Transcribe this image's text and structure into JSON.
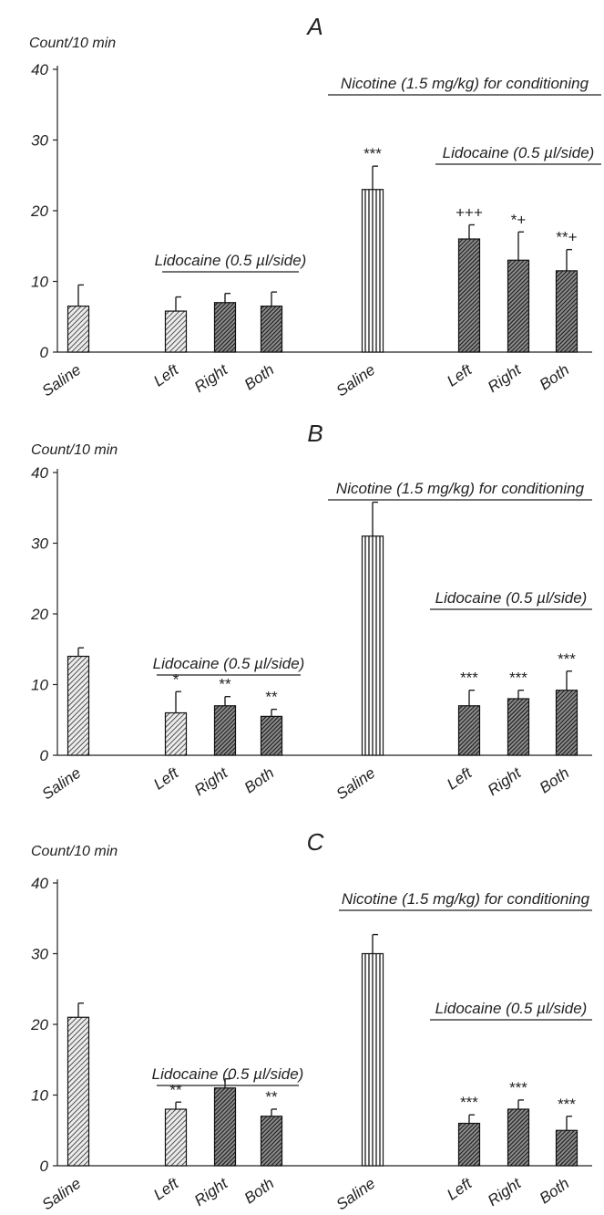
{
  "chart_data": [
    {
      "type": "bar",
      "title": "A",
      "ylabel": "Count/10 min",
      "ylim": [
        0,
        40
      ],
      "yticks": [
        0,
        10,
        20,
        30,
        40
      ],
      "categories": [
        "Saline",
        "Left",
        "Right",
        "Both",
        "Saline",
        "Left",
        "Right",
        "Both"
      ],
      "values": [
        6.5,
        5.8,
        7.0,
        6.5,
        23.0,
        16.0,
        13.0,
        11.5
      ],
      "errors": [
        3.0,
        2.0,
        1.3,
        2.0,
        3.3,
        2.0,
        4.0,
        3.0
      ],
      "significance": [
        "",
        "",
        "",
        "",
        "***",
        "+++",
        "*+",
        "**+"
      ],
      "bar_patterns": [
        "hatch-light",
        "hatch-light",
        "hatch-dark",
        "hatch-dark",
        "vertical",
        "hatch-dark",
        "hatch-dark",
        "hatch-dark"
      ],
      "annotations": [
        {
          "text": "Lidocaine (0.5 µl/side)",
          "span": [
            1,
            3
          ]
        },
        {
          "text": "Nicotine (1.5 mg/kg) for conditioning",
          "span": [
            4,
            7
          ]
        },
        {
          "text": "Lidocaine (0.5 µl/side)",
          "span": [
            5,
            7
          ]
        }
      ]
    },
    {
      "type": "bar",
      "title": "B",
      "ylabel": "Count/10 min",
      "ylim": [
        0,
        40
      ],
      "yticks": [
        0,
        10,
        20,
        30,
        40
      ],
      "categories": [
        "Saline",
        "Left",
        "Right",
        "Both",
        "Saline",
        "Left",
        "Right",
        "Both"
      ],
      "values": [
        14.0,
        6.0,
        7.0,
        5.5,
        31.0,
        7.0,
        8.0,
        9.2
      ],
      "errors": [
        1.2,
        3.0,
        1.3,
        1.0,
        4.8,
        2.2,
        1.2,
        2.7
      ],
      "significance": [
        "",
        "*",
        "**",
        "**",
        "",
        "***",
        "***",
        "***"
      ],
      "bar_patterns": [
        "hatch-light",
        "hatch-light",
        "hatch-dark",
        "hatch-dark",
        "vertical",
        "hatch-dark",
        "hatch-dark",
        "hatch-dark"
      ],
      "annotations": [
        {
          "text": "Lidocaine (0.5 µl/side)",
          "span": [
            1,
            3
          ]
        },
        {
          "text": "Nicotine (1.5 mg/kg) for conditioning",
          "span": [
            4,
            7
          ]
        },
        {
          "text": "Lidocaine (0.5 µl/side)",
          "span": [
            5,
            7
          ]
        }
      ]
    },
    {
      "type": "bar",
      "title": "C",
      "ylabel": "Count/10 min",
      "ylim": [
        0,
        40
      ],
      "yticks": [
        0,
        10,
        20,
        30,
        40
      ],
      "categories": [
        "Saline",
        "Left",
        "Right",
        "Both",
        "Saline",
        "Left",
        "Right",
        "Both"
      ],
      "values": [
        21.0,
        8.0,
        11.0,
        7.0,
        30.0,
        6.0,
        8.0,
        5.0
      ],
      "errors": [
        2.0,
        1.0,
        1.3,
        1.0,
        2.7,
        1.2,
        1.3,
        2.0
      ],
      "significance": [
        "",
        "**",
        "",
        "**",
        "",
        "***",
        "***",
        "***"
      ],
      "bar_patterns": [
        "hatch-light",
        "hatch-light",
        "hatch-dark",
        "hatch-dark",
        "vertical",
        "hatch-dark",
        "hatch-dark",
        "hatch-dark"
      ],
      "annotations": [
        {
          "text": "Lidocaine (0.5 µl/side)",
          "span": [
            1,
            3
          ]
        },
        {
          "text": "Nicotine (1.5 mg/kg) for conditioning",
          "span": [
            4,
            7
          ]
        },
        {
          "text": "Lidocaine (0.5 µl/side)",
          "span": [
            5,
            7
          ]
        }
      ]
    }
  ]
}
